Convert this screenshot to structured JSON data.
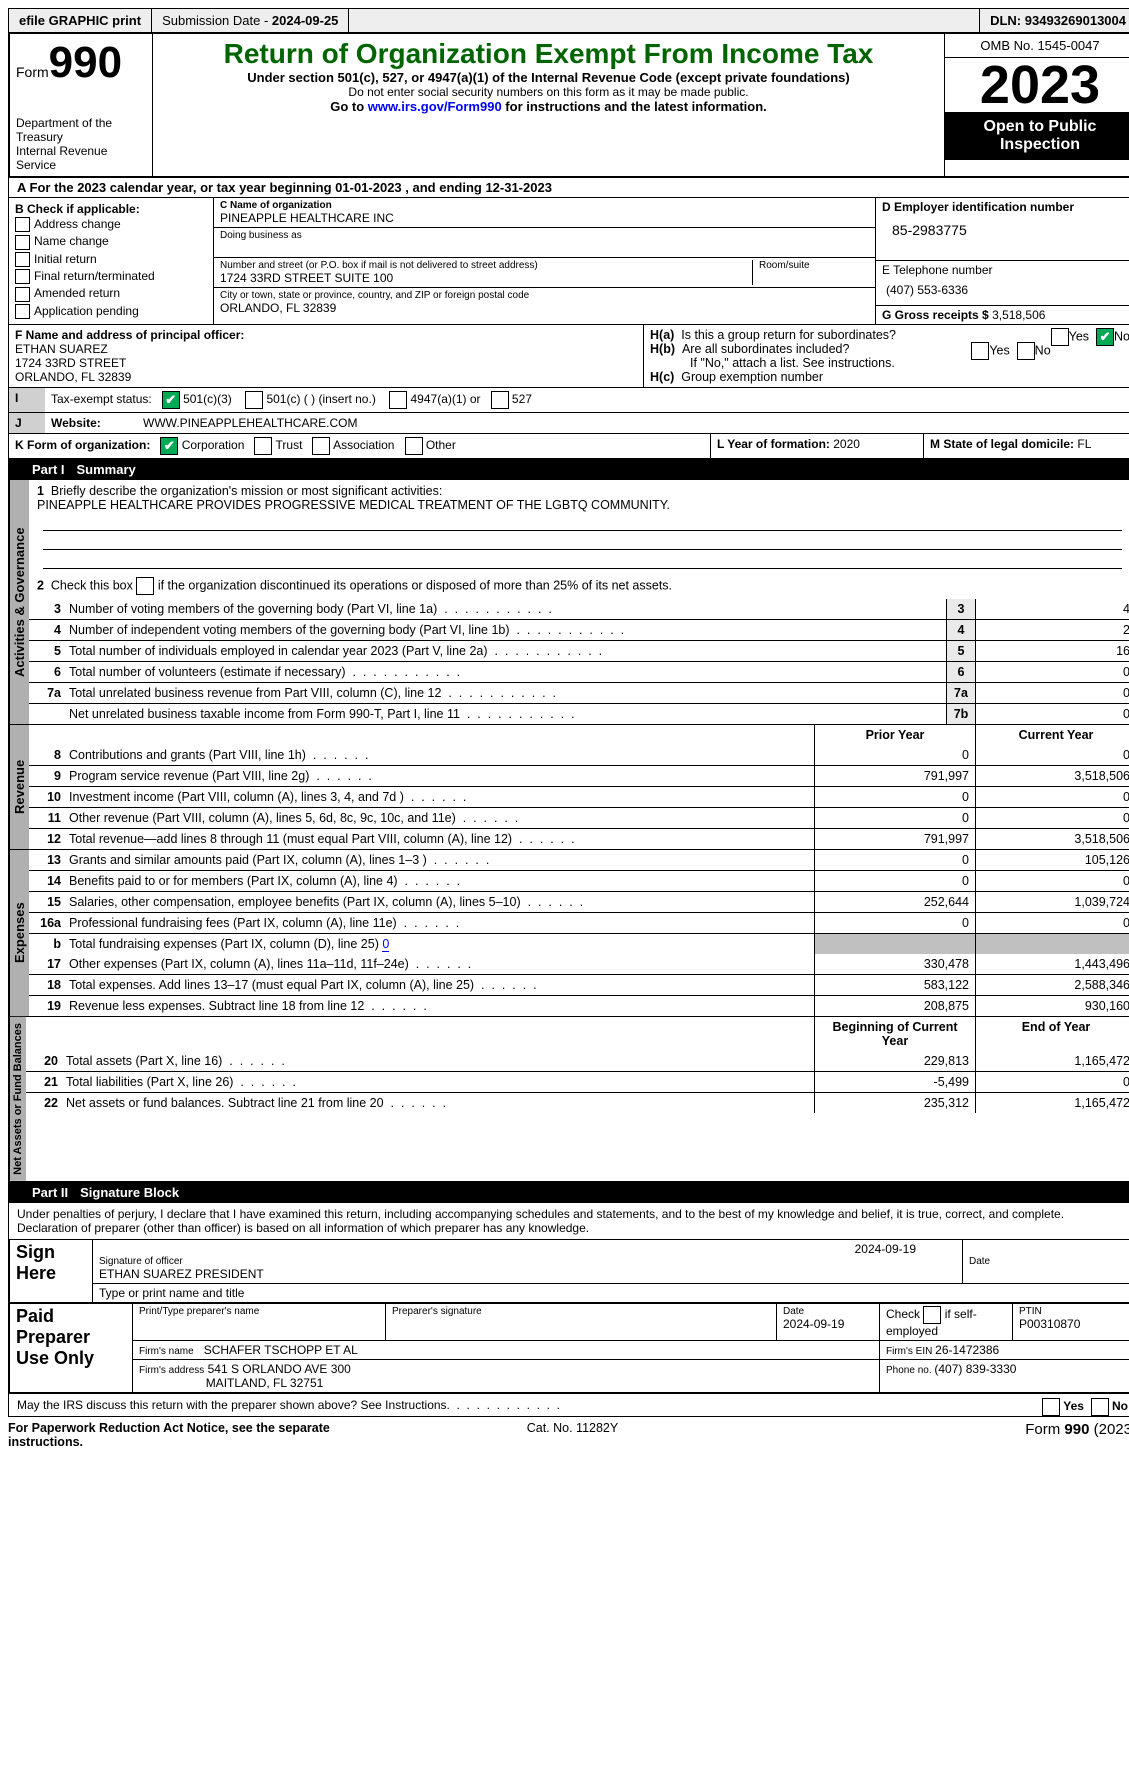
{
  "topbar": {
    "efile": "efile GRAPHIC print",
    "subdate_lbl": "Submission Date - ",
    "subdate": "2024-09-25",
    "dln_lbl": "DLN: ",
    "dln": "93493269013004"
  },
  "hdr": {
    "form_word": "Form",
    "form_no": "990",
    "dept": "Department of the Treasury\nInternal Revenue Service",
    "title": "Return of Organization Exempt From Income Tax",
    "sub1": "Under section 501(c), 527, or 4947(a)(1) of the Internal Revenue Code (except private foundations)",
    "sub2": "Do not enter social security numbers on this form as it may be made public.",
    "sub3a": "Go to ",
    "sub3link": "www.irs.gov/Form990",
    "sub3b": " for instructions and the latest information.",
    "omb": "OMB No. 1545-0047",
    "year": "2023",
    "pub": "Open to Public Inspection"
  },
  "A": {
    "text": "For the 2023 calendar year, or tax year beginning ",
    "beg": "01-01-2023",
    "mid": "  , and ending ",
    "end": "12-31-2023"
  },
  "B": {
    "hdr": "B Check if applicable:",
    "items": [
      "Address change",
      "Name change",
      "Initial return",
      "Final return/terminated",
      "Amended return",
      "Application pending"
    ]
  },
  "C": {
    "name_lbl": "C Name of organization",
    "name": "PINEAPPLE HEALTHCARE INC",
    "dba_lbl": "Doing business as",
    "dba": "",
    "addr_lbl": "Number and street (or P.O. box if mail is not delivered to street address)",
    "room_lbl": "Room/suite",
    "addr": "1724 33RD STREET SUITE 100",
    "city_lbl": "City or town, state or province, country, and ZIP or foreign postal code",
    "city": "ORLANDO, FL  32839"
  },
  "D": {
    "lbl": "D Employer identification number",
    "val": "85-2983775"
  },
  "E": {
    "lbl": "E Telephone number",
    "val": "(407) 553-6336"
  },
  "G": {
    "lbl": "G Gross receipts $ ",
    "val": "3,518,506"
  },
  "F": {
    "lbl": "F  Name and address of principal officer:",
    "name": "ETHAN SUAREZ",
    "addr1": "1724 33RD STREET",
    "addr2": "ORLANDO, FL  32839"
  },
  "H": {
    "a": "Is this a group return for subordinates?",
    "a_yes": "Yes",
    "a_no": "No",
    "b": "Are all subordinates included?",
    "b_yes": "Yes",
    "b_no": "No",
    "bnote": "If \"No,\" attach a list. See instructions.",
    "c": "Group exemption number"
  },
  "I": {
    "lbl": "Tax-exempt status:",
    "opts": [
      "501(c)(3)",
      "501(c) (  ) (insert no.)",
      "4947(a)(1) or",
      "527"
    ]
  },
  "J": {
    "lbl": "Website:",
    "val": "WWW.PINEAPPLEHEALTHCARE.COM"
  },
  "K": {
    "lbl": "K Form of organization:",
    "opts": [
      "Corporation",
      "Trust",
      "Association",
      "Other"
    ]
  },
  "L": {
    "lbl": "L Year of formation: ",
    "val": "2020"
  },
  "M": {
    "lbl": "M State of legal domicile: ",
    "val": "FL"
  },
  "partI": {
    "num": "Part I",
    "title": "Summary"
  },
  "gov": {
    "tab": "Activities & Governance",
    "l1": "Briefly describe the organization's mission or most significant activities:",
    "l1v": "PINEAPPLE HEALTHCARE PROVIDES PROGRESSIVE MEDICAL TREATMENT OF THE LGBTQ COMMUNITY.",
    "l2": "Check this box    if the organization discontinued its operations or disposed of more than 25% of its net assets.",
    "rows": [
      {
        "n": "3",
        "t": "Number of voting members of the governing body (Part VI, line 1a)",
        "b": "3",
        "v": "4"
      },
      {
        "n": "4",
        "t": "Number of independent voting members of the governing body (Part VI, line 1b)",
        "b": "4",
        "v": "2"
      },
      {
        "n": "5",
        "t": "Total number of individuals employed in calendar year 2023 (Part V, line 2a)",
        "b": "5",
        "v": "16"
      },
      {
        "n": "6",
        "t": "Total number of volunteers (estimate if necessary)",
        "b": "6",
        "v": "0"
      },
      {
        "n": "7a",
        "t": "Total unrelated business revenue from Part VIII, column (C), line 12",
        "b": "7a",
        "v": "0"
      },
      {
        "n": "",
        "t": "Net unrelated business taxable income from Form 990-T, Part I, line 11",
        "b": "7b",
        "v": "0"
      }
    ]
  },
  "rev": {
    "tab": "Revenue",
    "pY": "Prior Year",
    "cY": "Current Year",
    "rows": [
      {
        "n": "8",
        "t": "Contributions and grants (Part VIII, line 1h)",
        "p": "0",
        "c": "0"
      },
      {
        "n": "9",
        "t": "Program service revenue (Part VIII, line 2g)",
        "p": "791,997",
        "c": "3,518,506"
      },
      {
        "n": "10",
        "t": "Investment income (Part VIII, column (A), lines 3, 4, and 7d )",
        "p": "0",
        "c": "0"
      },
      {
        "n": "11",
        "t": "Other revenue (Part VIII, column (A), lines 5, 6d, 8c, 9c, 10c, and 11e)",
        "p": "0",
        "c": "0"
      },
      {
        "n": "12",
        "t": "Total revenue—add lines 8 through 11 (must equal Part VIII, column (A), line 12)",
        "p": "791,997",
        "c": "3,518,506"
      }
    ]
  },
  "exp": {
    "tab": "Expenses",
    "rows": [
      {
        "n": "13",
        "t": "Grants and similar amounts paid (Part IX, column (A), lines 1–3 )",
        "p": "0",
        "c": "105,126"
      },
      {
        "n": "14",
        "t": "Benefits paid to or for members (Part IX, column (A), line 4)",
        "p": "0",
        "c": "0"
      },
      {
        "n": "15",
        "t": "Salaries, other compensation, employee benefits (Part IX, column (A), lines 5–10)",
        "p": "252,644",
        "c": "1,039,724"
      },
      {
        "n": "16a",
        "t": "Professional fundraising fees (Part IX, column (A), line 11e)",
        "p": "0",
        "c": "0"
      }
    ],
    "l16b": "Total fundraising expenses (Part IX, column (D), line 25) ",
    "l16bv": "0",
    "rows2": [
      {
        "n": "17",
        "t": "Other expenses (Part IX, column (A), lines 11a–11d, 11f–24e)",
        "p": "330,478",
        "c": "1,443,496"
      },
      {
        "n": "18",
        "t": "Total expenses. Add lines 13–17 (must equal Part IX, column (A), line 25)",
        "p": "583,122",
        "c": "2,588,346"
      },
      {
        "n": "19",
        "t": "Revenue less expenses. Subtract line 18 from line 12",
        "p": "208,875",
        "c": "930,160"
      }
    ]
  },
  "net": {
    "tab": "Net Assets or Fund Balances",
    "bY": "Beginning of Current Year",
    "eY": "End of Year",
    "rows": [
      {
        "n": "20",
        "t": "Total assets (Part X, line 16)",
        "p": "229,813",
        "c": "1,165,472"
      },
      {
        "n": "21",
        "t": "Total liabilities (Part X, line 26)",
        "p": "-5,499",
        "c": "0"
      },
      {
        "n": "22",
        "t": "Net assets or fund balances. Subtract line 21 from line 20",
        "p": "235,312",
        "c": "1,165,472"
      }
    ]
  },
  "partII": {
    "num": "Part II",
    "title": "Signature Block"
  },
  "sig": {
    "decl": "Under penalties of perjury, I declare that I have examined this return, including accompanying schedules and statements, and to the best of my knowledge and belief, it is true, correct, and complete. Declaration of preparer (other than officer) is based on all information of which preparer has any knowledge.",
    "here": "Sign Here",
    "sigoff": "Signature of officer",
    "date": "Date",
    "sdate": "2024-09-19",
    "officer": "ETHAN SUAREZ  PRESIDENT",
    "typ": "Type or print name and title",
    "paid": "Paid Preparer Use Only",
    "pname_lbl": "Print/Type preparer's name",
    "psig_lbl": "Preparer's signature",
    "pdate_lbl": "Date",
    "pdate": "2024-09-19",
    "pself": "Check        if self-employed",
    "ptin_lbl": "PTIN",
    "ptin": "P00310870",
    "firm_lbl": "Firm's name",
    "firm": "SCHAFER TSCHOPP ET AL",
    "fein_lbl": "Firm's EIN ",
    "fein": "26-1472386",
    "faddr_lbl": "Firm's address",
    "faddr1": "541 S ORLANDO AVE 300",
    "faddr2": "MAITLAND, FL  32751",
    "fphone_lbl": "Phone no. ",
    "fphone": "(407) 839-3330",
    "discuss": "May the IRS discuss this return with the preparer shown above? See Instructions.",
    "yes": "Yes",
    "no": "No"
  },
  "foot": {
    "l": "For Paperwork Reduction Act Notice, see the separate instructions.",
    "c": "Cat. No. 11282Y",
    "r": "Form 990 (2023)"
  }
}
